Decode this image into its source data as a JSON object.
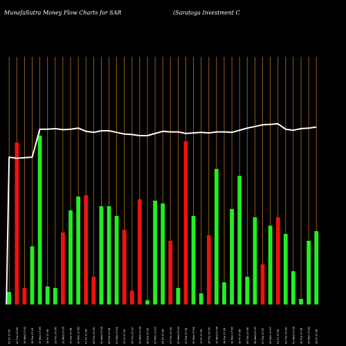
{
  "header": {
    "left_title": "MunafaSutra  Money Flow  Charts for SAR",
    "right_title": "(Saratoga  Investment C"
  },
  "colors": {
    "background": "#000000",
    "grid": "#b8731e",
    "up_bar": "#22ee22",
    "down_bar": "#ee1111",
    "price_line": "#ffffff"
  },
  "chart_data": {
    "type": "bar",
    "title": "MunafaSutra  Money Flow  Charts for SAR",
    "categories": [
      "21 Fri 27.97",
      "20 Thu 27.89",
      "19 Wed 27.92",
      "18 Tue 27.93",
      "17 Mon 27.95",
      "14 Fri 27.96",
      "13 Thu 27.94",
      "12 Wed 27.95",
      "11 Tue 27.96",
      "10 Mon 27.96",
      "07 Fri 27.96",
      "06 Thu 27.95",
      "05 Wed 27.95",
      "04 Tue 27.94",
      "03 Mon 27.94",
      "31 Fri 27.93",
      "30 Thu 27.93",
      "29 Wed 27.94",
      "28 Tue 27.93",
      "27 Mon 27.93",
      "24 Fri 27.94",
      "23 Thu 27.94",
      "22 Wed 27.93",
      "21 Tue 27.94",
      "20 Mon 27.94",
      "17 Fri 27.95",
      "16 Thu 27.95",
      "15 Wed 27.94",
      "14 Tue 27.95",
      "13 Mon 27.95",
      "10 Fri 27.96",
      "09 Thu 27.96",
      "08 Wed 27.97",
      "07 Tue 27.97",
      "06 Mon 27.97",
      "03 Fri 27.95",
      "02 Thu 27.95",
      "01 Wed 27.96",
      "30 Tue 27.96",
      "29 Mon 27.96",
      "26 Fri 27.96"
    ],
    "values": [
      9,
      117,
      12,
      42,
      122,
      13,
      12,
      52,
      68,
      78,
      79,
      20,
      71,
      71,
      64,
      54,
      10,
      76,
      3,
      75,
      73,
      46,
      12,
      118,
      64,
      8,
      50,
      98,
      16,
      69,
      93,
      20,
      63,
      29,
      57,
      63,
      51,
      24,
      4,
      46,
      53
    ],
    "directions": [
      "up",
      "down",
      "down",
      "up",
      "up",
      "up",
      "up",
      "down",
      "up",
      "up",
      "down",
      "down",
      "up",
      "up",
      "up",
      "down",
      "down",
      "down",
      "up",
      "up",
      "up",
      "down",
      "up",
      "down",
      "up",
      "up",
      "down",
      "up",
      "up",
      "up",
      "up",
      "up",
      "up",
      "down",
      "up",
      "down",
      "up",
      "up",
      "up",
      "up",
      "up"
    ],
    "price": [
      27.23,
      27.21,
      27.22,
      27.23,
      27.75,
      27.75,
      27.76,
      27.74,
      27.75,
      27.77,
      27.71,
      27.69,
      27.72,
      27.72,
      27.69,
      27.66,
      27.65,
      27.63,
      27.63,
      27.67,
      27.71,
      27.7,
      27.7,
      27.67,
      27.68,
      27.69,
      27.68,
      27.7,
      27.7,
      27.69,
      27.73,
      27.77,
      27.8,
      27.83,
      27.84,
      27.85,
      27.75,
      27.73,
      27.76,
      27.77,
      27.79
    ],
    "legend": "none",
    "grid": true
  }
}
